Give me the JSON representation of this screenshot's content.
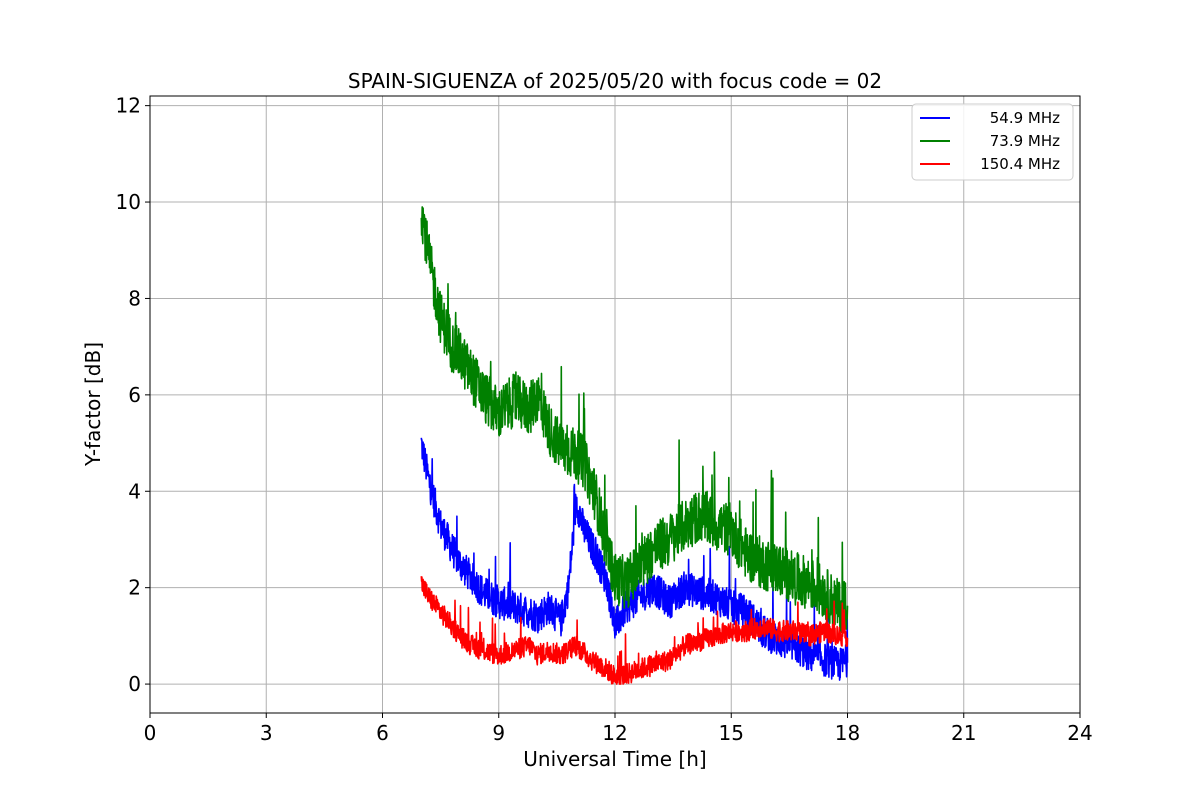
{
  "chart_data": {
    "type": "line",
    "title": "SPAIN-SIGUENZA of 2025/05/20 with focus code = 02",
    "xlabel": "Universal Time [h]",
    "ylabel": "Y-factor [dB]",
    "xlim": [
      0,
      24
    ],
    "ylim": [
      -0.6,
      12.2
    ],
    "xticks": [
      0,
      3,
      6,
      9,
      12,
      15,
      18,
      21,
      24
    ],
    "xtick_labels": [
      "0",
      "3",
      "6",
      "9",
      "12",
      "15",
      "18",
      "21",
      "24"
    ],
    "yticks": [
      0,
      2,
      4,
      6,
      8,
      10,
      12
    ],
    "ytick_labels": [
      "0",
      "2",
      "4",
      "6",
      "8",
      "10",
      "12"
    ],
    "grid": true,
    "legend_position": "top-right",
    "series": [
      {
        "name": "54.9 MHz",
        "color": "#0000ff",
        "x": [
          7.0,
          7.2,
          7.5,
          7.8,
          8.0,
          8.3,
          8.6,
          9.0,
          9.4,
          9.8,
          10.0,
          10.3,
          10.6,
          10.8,
          11.0,
          11.2,
          11.5,
          11.8,
          12.0,
          12.3,
          12.6,
          13.0,
          13.4,
          13.8,
          14.2,
          14.6,
          15.0,
          15.4,
          15.8,
          16.2,
          16.6,
          17.0,
          17.4,
          17.8,
          18.0
        ],
        "y": [
          5.0,
          4.2,
          3.3,
          2.8,
          2.5,
          2.2,
          1.9,
          1.7,
          1.6,
          1.5,
          1.4,
          1.6,
          1.3,
          2.0,
          3.8,
          3.2,
          2.7,
          2.1,
          1.2,
          1.6,
          1.8,
          2.0,
          1.7,
          2.0,
          1.9,
          1.8,
          1.6,
          1.5,
          1.1,
          0.9,
          0.8,
          0.6,
          0.5,
          0.4,
          0.5
        ],
        "noise": 0.35
      },
      {
        "name": "73.9 MHz",
        "color": "#008000",
        "x": [
          7.0,
          7.2,
          7.5,
          7.8,
          8.0,
          8.3,
          8.6,
          9.0,
          9.4,
          9.8,
          10.0,
          10.3,
          10.6,
          10.9,
          11.2,
          11.5,
          11.8,
          12.0,
          12.3,
          12.6,
          13.0,
          13.4,
          13.8,
          14.2,
          14.6,
          15.0,
          15.4,
          15.8,
          16.2,
          16.6,
          17.0,
          17.4,
          17.8,
          18.0
        ],
        "y": [
          9.9,
          8.8,
          7.6,
          7.0,
          6.8,
          6.4,
          6.0,
          5.6,
          5.9,
          5.7,
          6.0,
          5.3,
          4.9,
          4.8,
          4.6,
          3.9,
          2.8,
          2.2,
          2.1,
          2.4,
          2.8,
          3.0,
          3.3,
          3.5,
          3.3,
          3.2,
          2.7,
          2.5,
          2.4,
          2.2,
          2.1,
          1.9,
          1.6,
          1.7
        ],
        "noise": 0.55
      },
      {
        "name": "150.4 MHz",
        "color": "#ff0000",
        "x": [
          7.0,
          7.2,
          7.5,
          7.8,
          8.0,
          8.3,
          8.6,
          9.0,
          9.4,
          9.8,
          10.0,
          10.3,
          10.6,
          11.0,
          11.4,
          11.8,
          12.0,
          12.3,
          12.6,
          13.0,
          13.4,
          13.8,
          14.2,
          14.6,
          15.0,
          15.4,
          15.8,
          16.2,
          16.6,
          17.0,
          17.4,
          17.8,
          18.0
        ],
        "y": [
          2.1,
          1.8,
          1.5,
          1.2,
          1.0,
          0.8,
          0.7,
          0.6,
          0.7,
          0.8,
          0.6,
          0.7,
          0.6,
          0.8,
          0.5,
          0.3,
          0.15,
          0.2,
          0.3,
          0.4,
          0.5,
          0.8,
          0.9,
          1.0,
          1.1,
          1.1,
          1.2,
          1.1,
          1.1,
          1.0,
          1.1,
          1.0,
          1.0
        ],
        "noise": 0.22
      }
    ]
  }
}
